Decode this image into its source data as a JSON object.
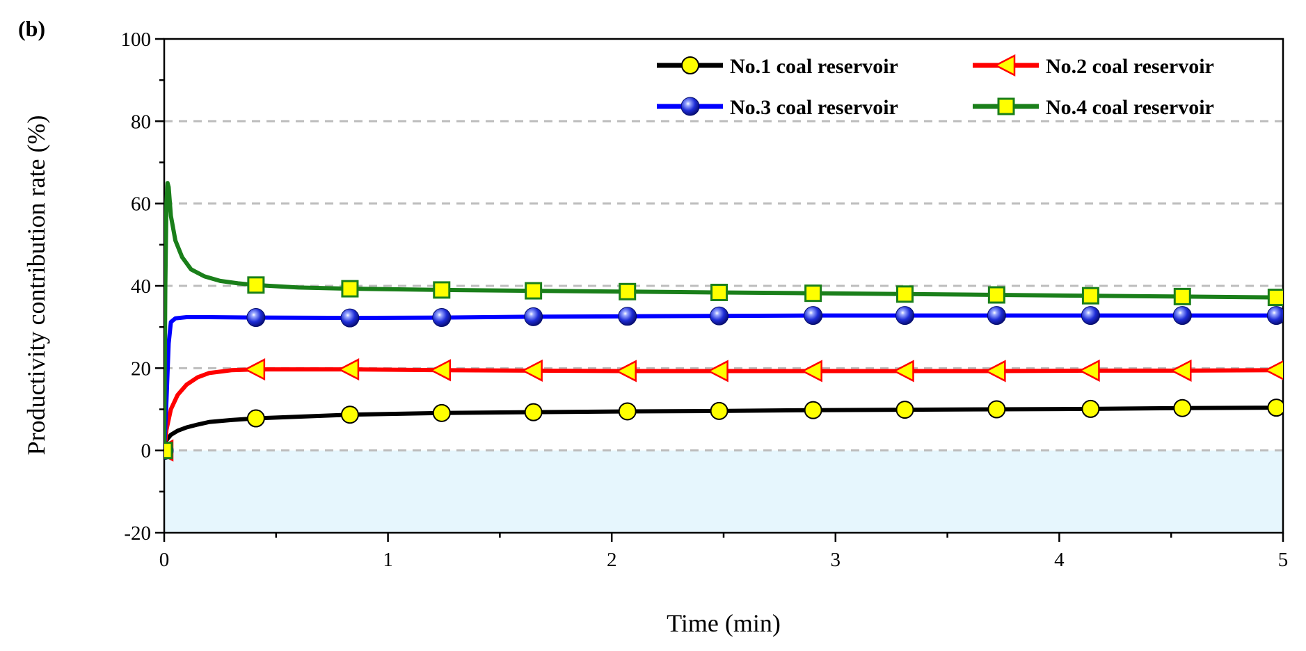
{
  "chart_data": {
    "type": "line",
    "panel_label": "(b)",
    "xlabel": "Time (min)",
    "ylabel": "Productivity contribution rate (%)",
    "xlim": [
      0,
      5
    ],
    "ylim": [
      -20,
      100
    ],
    "x_ticks": [
      0,
      1,
      2,
      3,
      4,
      5
    ],
    "y_ticks": [
      -20,
      0,
      20,
      40,
      60,
      80,
      100
    ],
    "x_tick_labels": [
      "0",
      "1",
      "2",
      "3",
      "4",
      "5"
    ],
    "y_tick_labels": [
      "-20",
      "0",
      "20",
      "40",
      "60",
      "80",
      "100"
    ],
    "dashed_gridlines_y": [
      0,
      20,
      40,
      60,
      80
    ],
    "shaded_band_y": [
      -20,
      0
    ],
    "legend_position": "top-right",
    "colors": {
      "series1": "#000000",
      "series2": "#ff0000",
      "series3": "#0000ff",
      "series4": "#1a7f1a",
      "marker_fill": "#ffff00",
      "shade": "#e6f6fd",
      "grid": "#bdbdbd"
    },
    "series": [
      {
        "name": "No.1 coal reservoir",
        "marker": "circle",
        "x": [
          0,
          0.01,
          0.03,
          0.06,
          0.1,
          0.15,
          0.2,
          0.3,
          0.41,
          0.83,
          1.24,
          1.65,
          2.07,
          2.48,
          2.9,
          3.31,
          3.72,
          4.14,
          4.55,
          4.97,
          5.0
        ],
        "y": [
          0,
          2.5,
          3.8,
          4.8,
          5.6,
          6.3,
          6.9,
          7.4,
          7.8,
          8.7,
          9.1,
          9.3,
          9.5,
          9.6,
          9.8,
          9.9,
          10.0,
          10.1,
          10.3,
          10.4,
          10.5
        ],
        "marker_x": [
          0.41,
          0.83,
          1.24,
          1.65,
          2.07,
          2.48,
          2.9,
          3.31,
          3.72,
          4.14,
          4.55,
          4.97
        ],
        "marker_y": [
          7.8,
          8.7,
          9.1,
          9.3,
          9.5,
          9.6,
          9.8,
          9.9,
          10.0,
          10.1,
          10.3,
          10.4
        ]
      },
      {
        "name": "No.2 coal reservoir",
        "marker": "triangle-left",
        "x": [
          0,
          0.01,
          0.03,
          0.06,
          0.1,
          0.15,
          0.2,
          0.3,
          0.41,
          0.83,
          1.24,
          1.65,
          2.07,
          2.48,
          2.9,
          3.31,
          3.72,
          4.14,
          4.55,
          4.97,
          5.0
        ],
        "y": [
          -1,
          5,
          10,
          13.5,
          16,
          17.8,
          18.8,
          19.5,
          19.7,
          19.7,
          19.5,
          19.4,
          19.3,
          19.3,
          19.3,
          19.3,
          19.3,
          19.4,
          19.4,
          19.5,
          19.5
        ],
        "marker_x": [
          0.41,
          0.83,
          1.24,
          1.65,
          2.07,
          2.48,
          2.9,
          3.31,
          3.72,
          4.14,
          4.55,
          4.97
        ],
        "marker_y": [
          19.7,
          19.7,
          19.5,
          19.4,
          19.3,
          19.3,
          19.3,
          19.3,
          19.3,
          19.4,
          19.4,
          19.5
        ]
      },
      {
        "name": "No.3 coal reservoir",
        "marker": "sphere",
        "x": [
          0,
          0.01,
          0.02,
          0.03,
          0.05,
          0.1,
          0.2,
          0.41,
          0.83,
          1.24,
          1.65,
          2.07,
          2.48,
          2.9,
          3.31,
          3.72,
          4.14,
          4.55,
          4.97,
          5.0
        ],
        "y": [
          0,
          12,
          26,
          31.2,
          32.1,
          32.4,
          32.4,
          32.3,
          32.2,
          32.3,
          32.5,
          32.6,
          32.7,
          32.8,
          32.8,
          32.8,
          32.8,
          32.8,
          32.8,
          32.8
        ],
        "marker_x": [
          0.41,
          0.83,
          1.24,
          1.65,
          2.07,
          2.48,
          2.9,
          3.31,
          3.72,
          4.14,
          4.55,
          4.97
        ],
        "marker_y": [
          32.3,
          32.2,
          32.3,
          32.5,
          32.6,
          32.7,
          32.8,
          32.8,
          32.8,
          32.8,
          32.8,
          32.8
        ]
      },
      {
        "name": "No.4 coal reservoir",
        "marker": "square",
        "x": [
          0,
          0.005,
          0.01,
          0.015,
          0.02,
          0.03,
          0.05,
          0.08,
          0.12,
          0.18,
          0.25,
          0.33,
          0.41,
          0.6,
          0.83,
          1.24,
          1.65,
          2.07,
          2.48,
          2.9,
          3.31,
          3.72,
          4.14,
          4.55,
          4.97,
          5.0
        ],
        "y": [
          0,
          40,
          60,
          65,
          64,
          57,
          51,
          47,
          44,
          42.3,
          41.2,
          40.6,
          40.2,
          39.6,
          39.3,
          39.0,
          38.8,
          38.6,
          38.4,
          38.2,
          38.0,
          37.8,
          37.6,
          37.4,
          37.2,
          37.2
        ],
        "marker_x": [
          0.41,
          0.83,
          1.24,
          1.65,
          2.07,
          2.48,
          2.9,
          3.31,
          3.72,
          4.14,
          4.55,
          4.97
        ],
        "marker_y": [
          40.2,
          39.3,
          39.0,
          38.8,
          38.6,
          38.4,
          38.2,
          38.0,
          37.8,
          37.6,
          37.4,
          37.2
        ]
      }
    ]
  }
}
